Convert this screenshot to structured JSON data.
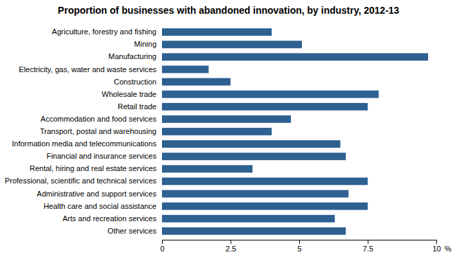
{
  "chart_data": {
    "type": "bar",
    "orientation": "horizontal",
    "title": "Proportion of businesses with abandoned innovation, by industry, 2012-13",
    "categories": [
      "Agriculture, forestry and fishing",
      "Mining",
      "Manufacturing",
      "Electricity, gas, water and waste services",
      "Construction",
      "Wholesale trade",
      "Retail trade",
      "Accommodation and food services",
      "Transport, postal and warehousing",
      "Information media and telecommunications",
      "Financial and insurance services",
      "Rental, hiring and real estate services",
      "Professional, scientific and technical services",
      "Administrative and support services",
      "Health care and social assistance",
      "Arts and recreation services",
      "Other services"
    ],
    "values": [
      4.0,
      5.1,
      9.7,
      1.7,
      2.5,
      7.9,
      7.5,
      4.7,
      4.0,
      6.5,
      6.7,
      3.3,
      7.5,
      6.8,
      7.5,
      6.3,
      6.7
    ],
    "color": "#2E6091",
    "xlim": [
      0,
      10
    ],
    "xticks": [
      0,
      2.5,
      5,
      7.5,
      10
    ],
    "xlabel": "%",
    "grid": false
  }
}
